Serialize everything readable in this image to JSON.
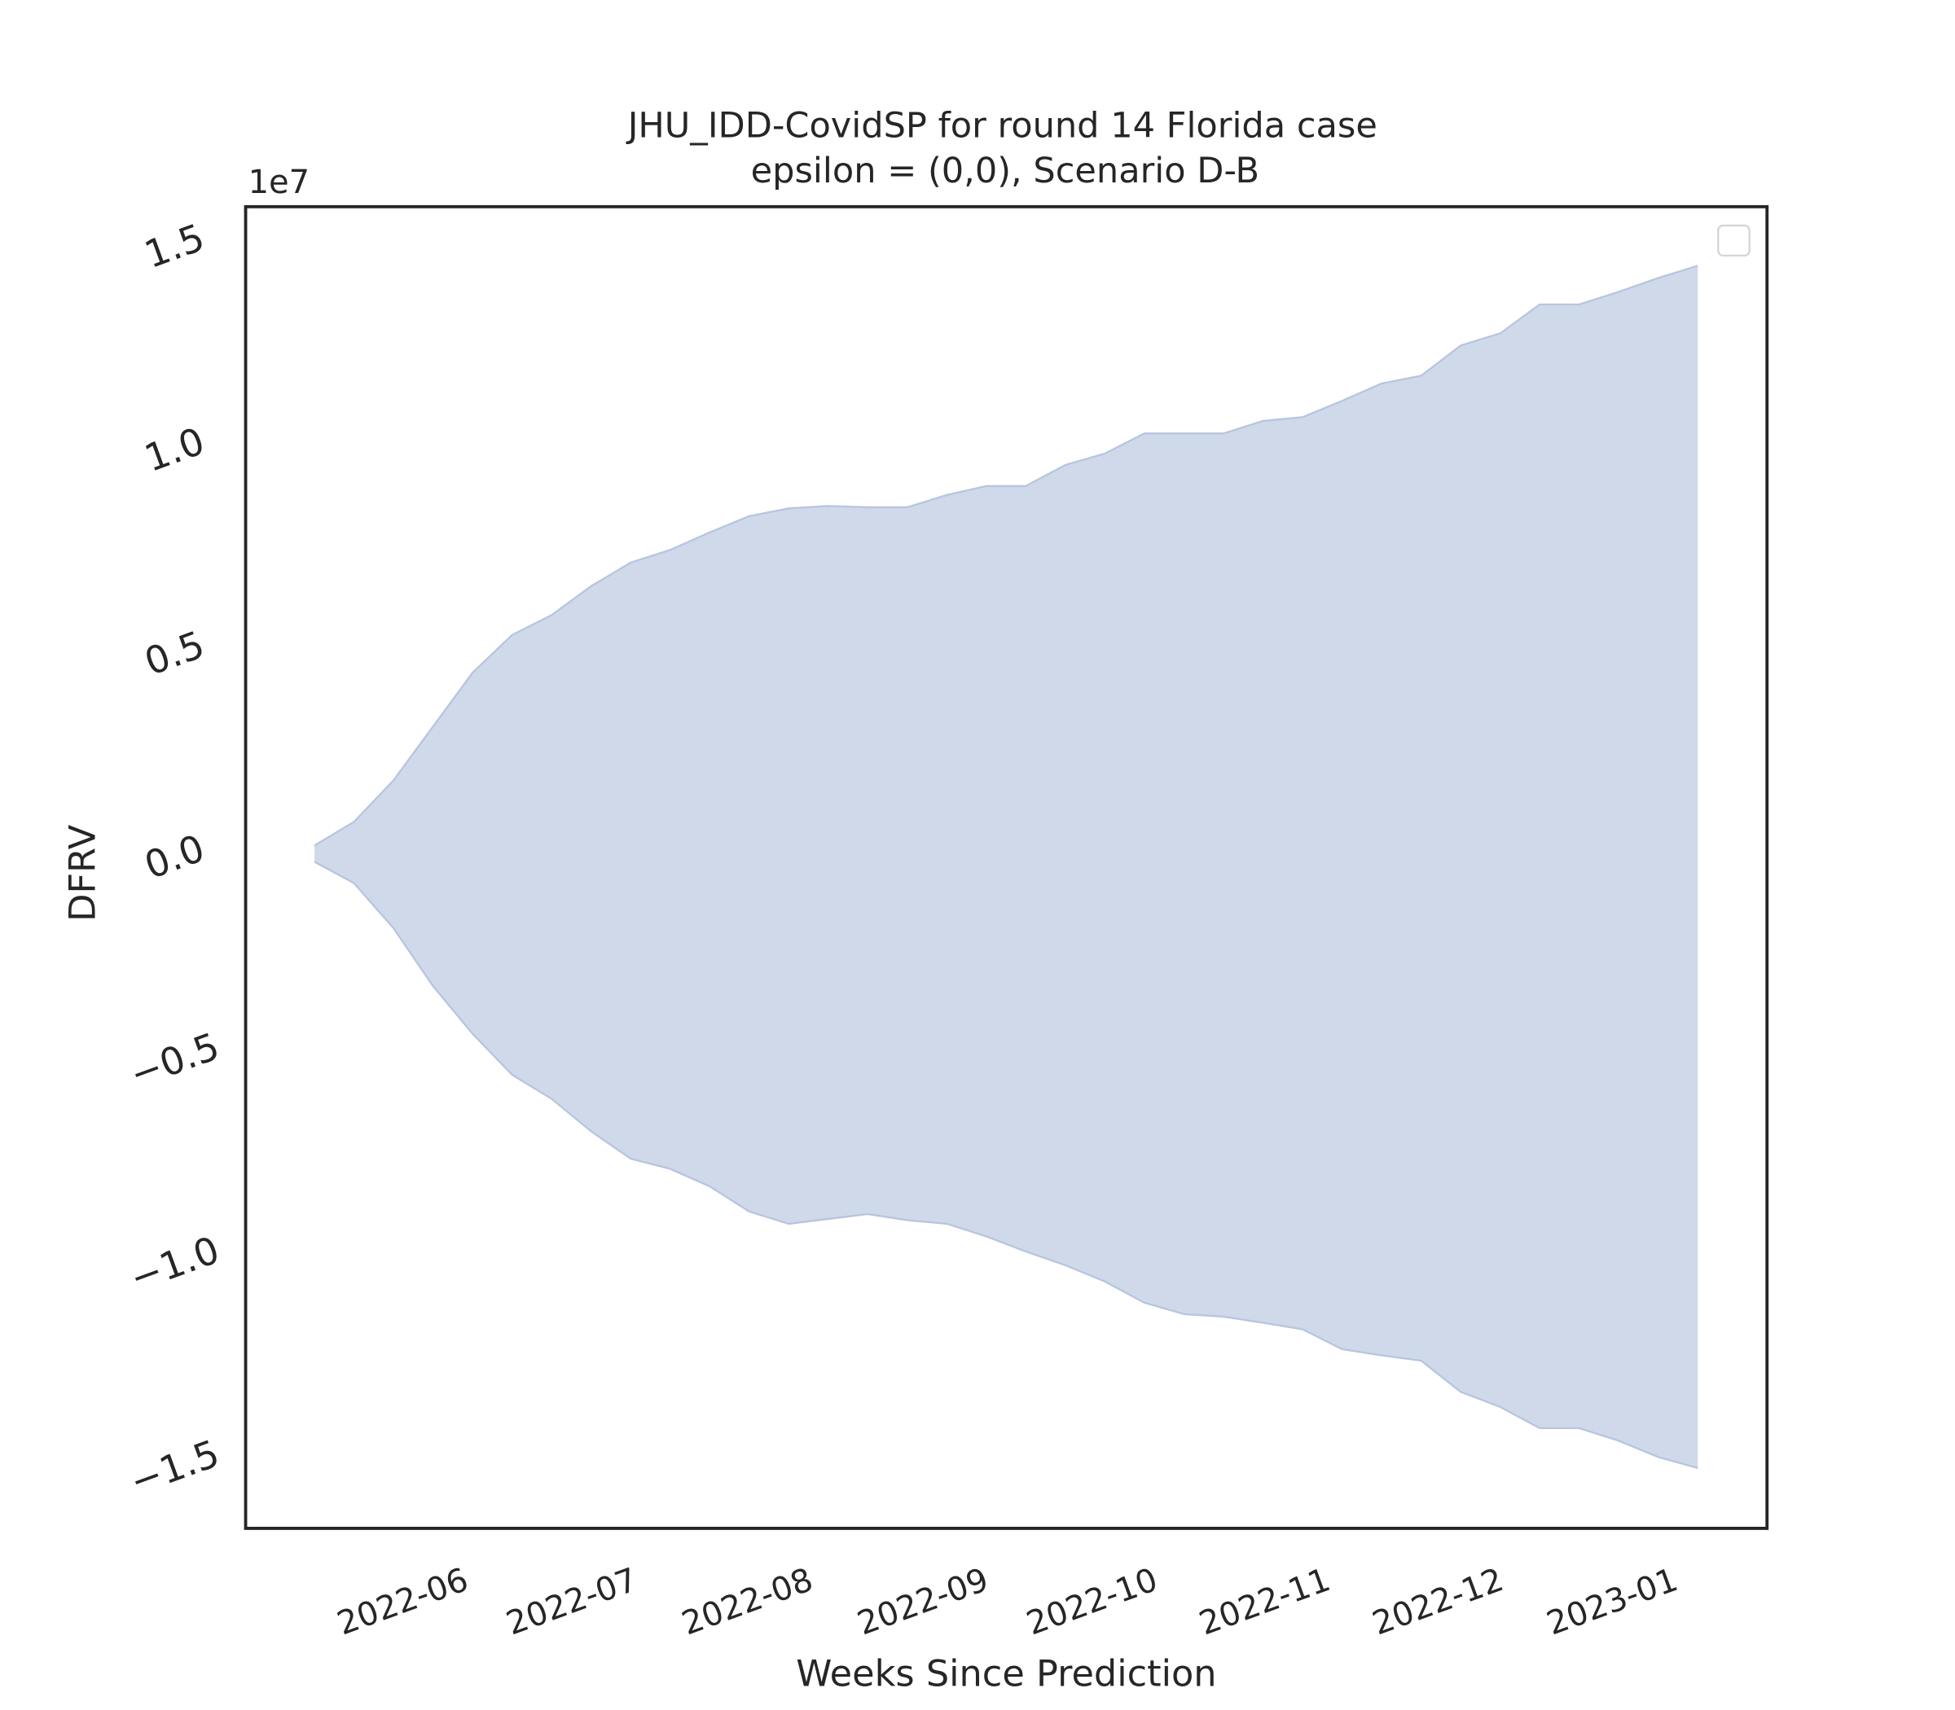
{
  "chart_data": {
    "type": "area",
    "title": "JHU_IDD-CovidSP for round 14 Florida case",
    "subtitle": "epsilon = (0,0), Scenario D-B",
    "x_label": "Weeks Since Prediction",
    "y_label": "DFRV",
    "y_offset_label": "1e7",
    "color": "#d0d9ea",
    "edge_color": "#b7c5df",
    "x": [
      0,
      1,
      2,
      3,
      4,
      5,
      6,
      7,
      8,
      9,
      10,
      11,
      12,
      13,
      14,
      15,
      16,
      17,
      18,
      19,
      20,
      21,
      22,
      23,
      24,
      25,
      26,
      27,
      28,
      29,
      30,
      31,
      32,
      33,
      34,
      35
    ],
    "upper": [
      0.034,
      0.092,
      0.194,
      0.326,
      0.458,
      0.551,
      0.6,
      0.671,
      0.729,
      0.76,
      0.803,
      0.843,
      0.862,
      0.868,
      0.865,
      0.865,
      0.895,
      0.917,
      0.917,
      0.969,
      0.997,
      1.046,
      1.046,
      1.046,
      1.077,
      1.086,
      1.126,
      1.169,
      1.188,
      1.262,
      1.292,
      1.363,
      1.363,
      1.394,
      1.428,
      1.458
    ],
    "lower": [
      -0.006,
      -0.058,
      -0.169,
      -0.311,
      -0.428,
      -0.529,
      -0.588,
      -0.668,
      -0.735,
      -0.76,
      -0.803,
      -0.865,
      -0.895,
      -0.883,
      -0.871,
      -0.886,
      -0.895,
      -0.926,
      -0.963,
      -0.997,
      -1.037,
      -1.089,
      -1.117,
      -1.123,
      -1.138,
      -1.154,
      -1.203,
      -1.218,
      -1.231,
      -1.308,
      -1.345,
      -1.397,
      -1.397,
      -1.428,
      -1.468,
      -1.495
    ],
    "xlim": [
      -1.74,
      36.75
    ],
    "xticks": [
      {
        "value": 2.25,
        "label": "2022-06"
      },
      {
        "value": 6.53,
        "label": "2022-07"
      },
      {
        "value": 10.97,
        "label": "2022-08"
      },
      {
        "value": 15.41,
        "label": "2022-09"
      },
      {
        "value": 19.69,
        "label": "2022-10"
      },
      {
        "value": 24.06,
        "label": "2022-11"
      },
      {
        "value": 28.44,
        "label": "2022-12"
      },
      {
        "value": 32.85,
        "label": "2023-01"
      }
    ],
    "ylim": [
      -1.643,
      1.603
    ],
    "yticks": [
      {
        "value": -1.5,
        "label": "−1.5"
      },
      {
        "value": -1.0,
        "label": "−1.0"
      },
      {
        "value": -0.5,
        "label": "−0.5"
      },
      {
        "value": 0,
        "label": "0.0"
      },
      0.5,
      {
        "value": 1.0,
        "label": "1.0"
      },
      1.5
    ],
    "grid": false
  }
}
